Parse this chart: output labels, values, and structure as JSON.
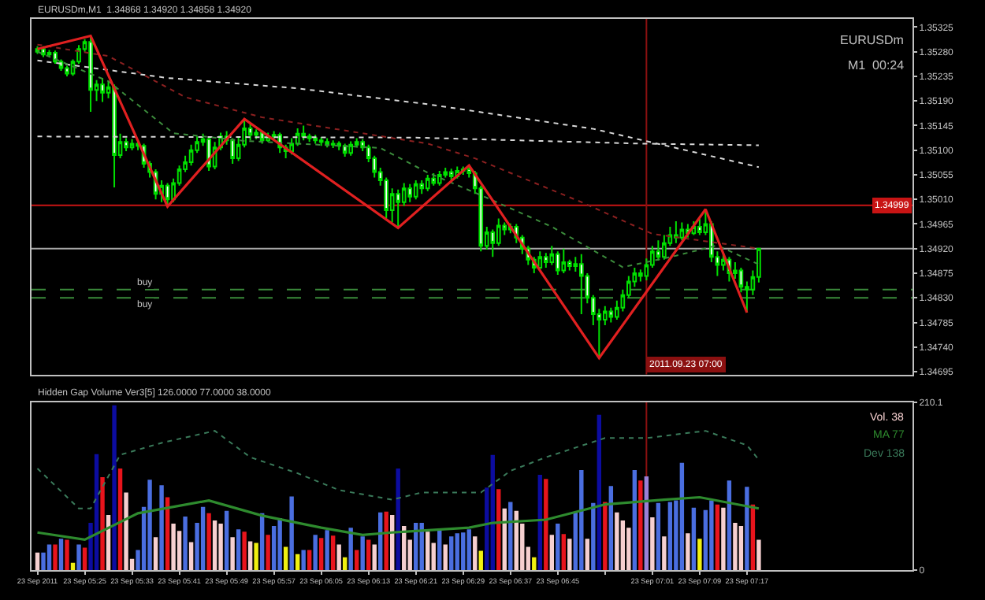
{
  "chart_data": [
    {
      "type": "candlestick",
      "title": "EURUSDm,M1  1.34868 1.34920 1.34858 1.34920",
      "annotations": [
        "EURUSDm",
        "M1  00:24"
      ],
      "tick_labels": "y",
      "xlim": [
        "2011-09-23T05:16",
        "2011-09-23T07:45"
      ],
      "ylim": [
        1.3469,
        1.3534
      ],
      "yticks": [
        1.35325,
        {
          "value": 1.3528,
          "label": "1.35280"
        },
        1.35235,
        {
          "value": 1.3519,
          "label": "1.35190"
        },
        1.35145,
        {
          "value": 1.351,
          "label": "1.35100"
        },
        1.35055,
        {
          "value": 1.3501,
          "label": "1.35010"
        },
        1.34965,
        {
          "value": 1.3492,
          "label": "1.34920"
        },
        1.34875,
        {
          "value": 1.3483,
          "label": "1.34830"
        },
        1.34785,
        {
          "value": 1.3474,
          "label": "1.34740"
        },
        1.34695
      ],
      "x": [
        "2011-09-23T05:17",
        "2011-09-23T05:18",
        "2011-09-23T05:19",
        "2011-09-23T05:20",
        "2011-09-23T05:21",
        "2011-09-23T05:22",
        "2011-09-23T05:23",
        "2011-09-23T05:24",
        "2011-09-23T05:25",
        "2011-09-23T05:26",
        "2011-09-23T05:27",
        "2011-09-23T05:28",
        "2011-09-23T05:29",
        "2011-09-23T05:30",
        "2011-09-23T05:31",
        "2011-09-23T05:32",
        "2011-09-23T05:33",
        "2011-09-23T05:34",
        "2011-09-23T05:35",
        "2011-09-23T05:36",
        "2011-09-23T05:37",
        "2011-09-23T05:38",
        "2011-09-23T05:39",
        "2011-09-23T05:40",
        "2011-09-23T05:41",
        "2011-09-23T05:42",
        "2011-09-23T05:43",
        "2011-09-23T05:44",
        "2011-09-23T05:45",
        "2011-09-23T05:46",
        "2011-09-23T05:47",
        "2011-09-23T05:48",
        "2011-09-23T05:49",
        "2011-09-23T05:50",
        "2011-09-23T05:51",
        "2011-09-23T05:52",
        "2011-09-23T05:53",
        "2011-09-23T05:54",
        "2011-09-23T05:55",
        "2011-09-23T05:56",
        "2011-09-23T05:57",
        "2011-09-23T05:58",
        "2011-09-23T05:59",
        "2011-09-23T06:00",
        "2011-09-23T06:01",
        "2011-09-23T06:02",
        "2011-09-23T06:03",
        "2011-09-23T06:04",
        "2011-09-23T06:05",
        "2011-09-23T06:06",
        "2011-09-23T06:07",
        "2011-09-23T06:08",
        "2011-09-23T06:09",
        "2011-09-23T06:10",
        "2011-09-23T06:11",
        "2011-09-23T06:12",
        "2011-09-23T06:13",
        "2011-09-23T06:14",
        "2011-09-23T06:15",
        "2011-09-23T06:16",
        "2011-09-23T06:17",
        "2011-09-23T06:18",
        "2011-09-23T06:19",
        "2011-09-23T06:20",
        "2011-09-23T06:21",
        "2011-09-23T06:22",
        "2011-09-23T06:23",
        "2011-09-23T06:24",
        "2011-09-23T06:25",
        "2011-09-23T06:26",
        "2011-09-23T06:27",
        "2011-09-23T06:28",
        "2011-09-23T06:29",
        "2011-09-23T06:30",
        "2011-09-23T06:31",
        "2011-09-23T06:32",
        "2011-09-23T06:33",
        "2011-09-23T06:34",
        "2011-09-23T06:35",
        "2011-09-23T06:36",
        "2011-09-23T06:37",
        "2011-09-23T06:38",
        "2011-09-23T06:39",
        "2011-09-23T06:40",
        "2011-09-23T06:41",
        "2011-09-23T06:42",
        "2011-09-23T06:43",
        "2011-09-23T06:44",
        "2011-09-23T06:45",
        "2011-09-23T06:46",
        "2011-09-23T06:47",
        "2011-09-23T06:48",
        "2011-09-23T06:49",
        "2011-09-23T06:50",
        "2011-09-23T06:51",
        "2011-09-23T06:52",
        "2011-09-23T06:53",
        "2011-09-23T06:54",
        "2011-09-23T06:55",
        "2011-09-23T06:56",
        "2011-09-23T06:57",
        "2011-09-23T06:58",
        "2011-09-23T06:59",
        "2011-09-23T07:00",
        "2011-09-23T07:01",
        "2011-09-23T07:02",
        "2011-09-23T07:03",
        "2011-09-23T07:04",
        "2011-09-23T07:05",
        "2011-09-23T07:06",
        "2011-09-23T07:07",
        "2011-09-23T07:08",
        "2011-09-23T07:09",
        "2011-09-23T07:10",
        "2011-09-23T07:11",
        "2011-09-23T07:12",
        "2011-09-23T07:13",
        "2011-09-23T07:14",
        "2011-09-23T07:15",
        "2011-09-23T07:16",
        "2011-09-23T07:17",
        "2011-09-23T07:18",
        "2011-09-23T07:19"
      ],
      "ohlc": [
        [
          1.3528,
          1.3529,
          1.35276,
          1.35285
        ],
        [
          1.35285,
          1.3529,
          1.3527,
          1.35275
        ],
        [
          1.35275,
          1.35283,
          1.35271,
          1.35278
        ],
        [
          1.35278,
          1.35282,
          1.35258,
          1.35262
        ],
        [
          1.35262,
          1.35266,
          1.35245,
          1.3525
        ],
        [
          1.3525,
          1.35254,
          1.35235,
          1.3524
        ],
        [
          1.3524,
          1.35266,
          1.35236,
          1.35262
        ],
        [
          1.35262,
          1.35292,
          1.35258,
          1.35285
        ],
        [
          1.35285,
          1.35303,
          1.3528,
          1.35298
        ],
        [
          1.35298,
          1.35309,
          1.3517,
          1.3521
        ],
        [
          1.3521,
          1.35228,
          1.3519,
          1.3522
        ],
        [
          1.3522,
          1.35232,
          1.35188,
          1.35205
        ],
        [
          1.35205,
          1.35225,
          1.35195,
          1.35215
        ],
        [
          1.35215,
          1.3522,
          1.35032,
          1.35091
        ],
        [
          1.35091,
          1.3513,
          1.35085,
          1.35115
        ],
        [
          1.35115,
          1.35122,
          1.35098,
          1.35105
        ],
        [
          1.35105,
          1.3512,
          1.351,
          1.35112
        ],
        [
          1.35112,
          1.35118,
          1.351,
          1.35108
        ],
        [
          1.35108,
          1.35112,
          1.35068,
          1.35075
        ],
        [
          1.35075,
          1.3508,
          1.3505,
          1.3506
        ],
        [
          1.3506,
          1.35065,
          1.3501,
          1.3502
        ],
        [
          1.3502,
          1.35045,
          1.35005,
          1.35035
        ],
        [
          1.35035,
          1.3504,
          1.34997,
          1.3501
        ],
        [
          1.3501,
          1.35048,
          1.35005,
          1.3504
        ],
        [
          1.3504,
          1.35072,
          1.35035,
          1.35065
        ],
        [
          1.35065,
          1.3509,
          1.3506,
          1.35078
        ],
        [
          1.35078,
          1.3511,
          1.35072,
          1.351
        ],
        [
          1.351,
          1.35125,
          1.35095,
          1.35115
        ],
        [
          1.35115,
          1.3513,
          1.35108,
          1.3512
        ],
        [
          1.3512,
          1.35125,
          1.35062,
          1.3507
        ],
        [
          1.3507,
          1.35115,
          1.35065,
          1.35105
        ],
        [
          1.35105,
          1.35132,
          1.351,
          1.35125
        ],
        [
          1.35125,
          1.35135,
          1.3511,
          1.35118
        ],
        [
          1.35118,
          1.35122,
          1.35075,
          1.35085
        ],
        [
          1.35085,
          1.35125,
          1.3508,
          1.3511
        ],
        [
          1.3511,
          1.35157,
          1.35105,
          1.3514
        ],
        [
          1.3514,
          1.35148,
          1.35118,
          1.35128
        ],
        [
          1.35128,
          1.35138,
          1.3512,
          1.35132
        ],
        [
          1.35132,
          1.35136,
          1.35112,
          1.35118
        ],
        [
          1.35118,
          1.35132,
          1.35115,
          1.35125
        ],
        [
          1.35125,
          1.35135,
          1.3512,
          1.35128
        ],
        [
          1.35128,
          1.35132,
          1.35095,
          1.35105
        ],
        [
          1.35105,
          1.3511,
          1.35085,
          1.35098
        ],
        [
          1.35098,
          1.35122,
          1.35092,
          1.35112
        ],
        [
          1.35112,
          1.3514,
          1.35108,
          1.3513
        ],
        [
          1.3513,
          1.35145,
          1.35118,
          1.35125
        ],
        [
          1.35125,
          1.3513,
          1.35115,
          1.35122
        ],
        [
          1.35122,
          1.35128,
          1.35112,
          1.35118
        ],
        [
          1.35118,
          1.35124,
          1.35108,
          1.35115
        ],
        [
          1.35115,
          1.35122,
          1.35105,
          1.3511
        ],
        [
          1.3511,
          1.35118,
          1.35104,
          1.35112
        ],
        [
          1.35112,
          1.35116,
          1.351,
          1.35108
        ],
        [
          1.35108,
          1.35112,
          1.35088,
          1.35095
        ],
        [
          1.35095,
          1.35116,
          1.3509,
          1.3511
        ],
        [
          1.3511,
          1.35122,
          1.35105,
          1.35115
        ],
        [
          1.35115,
          1.3512,
          1.35098,
          1.35105
        ],
        [
          1.35105,
          1.3511,
          1.35078,
          1.35085
        ],
        [
          1.35085,
          1.3509,
          1.3505,
          1.3506
        ],
        [
          1.3506,
          1.35068,
          1.35035,
          1.35045
        ],
        [
          1.35045,
          1.3505,
          1.34975,
          1.3499
        ],
        [
          1.3499,
          1.3503,
          1.34968,
          1.3502
        ],
        [
          1.3502,
          1.35028,
          1.34958,
          1.35005
        ],
        [
          1.35005,
          1.3504,
          1.34998,
          1.3503
        ],
        [
          1.3503,
          1.35038,
          1.35005,
          1.35015
        ],
        [
          1.35015,
          1.35045,
          1.3501,
          1.35038
        ],
        [
          1.35038,
          1.35045,
          1.3502,
          1.3503
        ],
        [
          1.3503,
          1.35055,
          1.35025,
          1.35048
        ],
        [
          1.35048,
          1.35058,
          1.35035,
          1.3504
        ],
        [
          1.3504,
          1.35062,
          1.35035,
          1.35055
        ],
        [
          1.35055,
          1.35068,
          1.3505,
          1.3506
        ],
        [
          1.3506,
          1.35066,
          1.35045,
          1.35052
        ],
        [
          1.35052,
          1.3507,
          1.35048,
          1.35062
        ],
        [
          1.35062,
          1.3507,
          1.35055,
          1.35065
        ],
        [
          1.35065,
          1.35072,
          1.3505,
          1.35058
        ],
        [
          1.35058,
          1.35062,
          1.3502,
          1.3503
        ],
        [
          1.3503,
          1.35035,
          1.34915,
          1.34925
        ],
        [
          1.34925,
          1.3496,
          1.34918,
          1.3495
        ],
        [
          1.3495,
          1.34955,
          1.34905,
          1.3493
        ],
        [
          1.3493,
          1.34975,
          1.34925,
          1.34962
        ],
        [
          1.34962,
          1.34968,
          1.34945,
          1.34955
        ],
        [
          1.34955,
          1.34966,
          1.34948,
          1.3496
        ],
        [
          1.3496,
          1.34965,
          1.3493,
          1.3494
        ],
        [
          1.3494,
          1.34945,
          1.3491,
          1.3492
        ],
        [
          1.3492,
          1.34925,
          1.3489,
          1.349
        ],
        [
          1.349,
          1.34905,
          1.34875,
          1.34885
        ],
        [
          1.34885,
          1.34915,
          1.3488,
          1.34905
        ],
        [
          1.34905,
          1.34912,
          1.34885,
          1.34895
        ],
        [
          1.34895,
          1.34925,
          1.3489,
          1.3491
        ],
        [
          1.3491,
          1.34915,
          1.34872,
          1.3488
        ],
        [
          1.3488,
          1.3492,
          1.34875,
          1.34895
        ],
        [
          1.34895,
          1.349,
          1.3488,
          1.34888
        ],
        [
          1.34888,
          1.34905,
          1.34878,
          1.34892
        ],
        [
          1.34892,
          1.3491,
          1.348,
          1.3487
        ],
        [
          1.3487,
          1.34875,
          1.3482,
          1.3483
        ],
        [
          1.3483,
          1.34835,
          1.3478,
          1.348
        ],
        [
          1.348,
          1.3481,
          1.3472,
          1.3479
        ],
        [
          1.3479,
          1.34815,
          1.3478,
          1.34805
        ],
        [
          1.34805,
          1.34812,
          1.34785,
          1.34795
        ],
        [
          1.34795,
          1.34825,
          1.3479,
          1.34812
        ],
        [
          1.34812,
          1.34845,
          1.34805,
          1.34835
        ],
        [
          1.34835,
          1.3487,
          1.3483,
          1.3486
        ],
        [
          1.3486,
          1.34885,
          1.3485,
          1.34875
        ],
        [
          1.34875,
          1.34882,
          1.3486,
          1.3487
        ],
        [
          1.3487,
          1.34902,
          1.34862,
          1.3489
        ],
        [
          1.3489,
          1.34925,
          1.34885,
          1.34915
        ],
        [
          1.34915,
          1.34935,
          1.34898,
          1.34905
        ],
        [
          1.34905,
          1.34945,
          1.349,
          1.3493
        ],
        [
          1.3493,
          1.3496,
          1.34925,
          1.34945
        ],
        [
          1.34945,
          1.3497,
          1.3493,
          1.3494
        ],
        [
          1.3494,
          1.34968,
          1.34935,
          1.34955
        ],
        [
          1.34955,
          1.34965,
          1.3494,
          1.34948
        ],
        [
          1.34948,
          1.3497,
          1.34945,
          1.3496
        ],
        [
          1.3496,
          1.34975,
          1.34945,
          1.3495
        ],
        [
          1.3495,
          1.34992,
          1.34945,
          1.34965
        ],
        [
          1.34965,
          1.3497,
          1.34895,
          1.34905
        ],
        [
          1.34905,
          1.34915,
          1.3487,
          1.3489
        ],
        [
          1.3489,
          1.3491,
          1.3488,
          1.349
        ],
        [
          1.349,
          1.34905,
          1.3486,
          1.34875
        ],
        [
          1.34875,
          1.34895,
          1.34865,
          1.3488
        ],
        [
          1.3488,
          1.34885,
          1.3484,
          1.3485
        ],
        [
          1.3485,
          1.3486,
          1.34803,
          1.34845
        ],
        [
          1.34845,
          1.3488,
          1.34835,
          1.34868
        ],
        [
          1.34868,
          1.3492,
          1.34858,
          1.3492
        ]
      ],
      "series": [
        {
          "type": "line",
          "color": "#d8d8d8",
          "line_style": "dotted",
          "x": [
            "2011-09-23T05:17",
            "2011-09-23T05:39",
            "2011-09-23T06:01",
            "2011-09-23T06:23",
            "2011-09-23T06:51",
            "2011-09-23T07:19"
          ],
          "values": [
            1.35264,
            1.35232,
            1.35213,
            1.35184,
            1.35139,
            1.35069
          ]
        },
        {
          "type": "line",
          "color": "#d8d8d8",
          "line_style": "dotted",
          "x": [
            "2011-09-23T05:17",
            "2011-09-23T06:21",
            "2011-09-23T06:59",
            "2011-09-23T07:19"
          ],
          "values": [
            1.35125,
            1.35123,
            1.35112,
            1.35109
          ]
        },
        {
          "type": "line",
          "color": "#8b2020",
          "line_style": "dotted",
          "x": [
            "2011-09-23T05:17",
            "2011-09-23T05:29",
            "2011-09-23T05:42",
            "2011-09-23T05:55",
            "2011-09-23T06:23",
            "2011-09-23T06:31",
            "2011-09-23T06:49",
            "2011-09-23T07:01",
            "2011-09-23T07:19"
          ],
          "values": [
            1.35293,
            1.35272,
            1.35197,
            1.3516,
            1.35112,
            1.35085,
            1.35005,
            1.34947,
            1.3492
          ]
        },
        {
          "type": "line",
          "color": "#3c8c3c",
          "line_style": "dotted",
          "x": [
            "2011-09-23T05:17",
            "2011-09-23T05:29",
            "2011-09-23T05:40",
            "2011-09-23T05:52",
            "2011-09-23T06:15",
            "2011-09-23T06:23",
            "2011-09-23T06:33",
            "2011-09-23T06:44",
            "2011-09-23T06:56",
            "2011-09-23T07:05",
            "2011-09-23T07:12",
            "2011-09-23T07:19"
          ],
          "values": [
            1.3528,
            1.35226,
            1.35131,
            1.35117,
            1.35104,
            1.35059,
            1.35013,
            1.3496,
            1.34886,
            1.34907,
            1.34926,
            1.34891
          ]
        },
        {
          "type": "line",
          "color": "#e02020",
          "line_style": "solid",
          "x": [
            "2011-09-23T05:17",
            "2011-09-23T05:26",
            "2011-09-23T05:39",
            "2011-09-23T05:52",
            "2011-09-23T06:18",
            "2011-09-23T06:30",
            "2011-09-23T06:52",
            "2011-09-23T07:10",
            "2011-09-23T07:17"
          ],
          "values": [
            1.35285,
            1.35309,
            1.34997,
            1.35157,
            1.34958,
            1.35072,
            1.3472,
            1.34992,
            1.34803
          ]
        }
      ],
      "ref_lines": [
        {
          "axis": "y",
          "value": 1.34999,
          "label": "1.34999",
          "color": "#c81414",
          "line_style": "solid"
        },
        {
          "axis": "y",
          "value": 1.3492,
          "color": "#a8a8a8",
          "line_style": "solid"
        },
        {
          "axis": "y",
          "value": 1.34845,
          "label": "buy",
          "color": "#3a8a3a",
          "line_style": "dashed"
        },
        {
          "axis": "y",
          "value": 1.3483,
          "label": "buy",
          "color": "#3a8a3a",
          "line_style": "dashed"
        },
        {
          "axis": "x",
          "value": "2011-09-23T07:00",
          "label": "2011.09.23 07:00",
          "color": "#8b1010",
          "line_style": "solid"
        }
      ]
    },
    {
      "type": "bar",
      "title": "Hidden Gap Volume Ver3[5] 126.0000 77.0000 38.0000",
      "legend": "top right",
      "xlim": [
        "2011-09-23T05:16",
        "2011-09-23T07:45"
      ],
      "xticks": [
        {
          "value": "2011-09-23T05:17",
          "label": "23 Sep 2011"
        },
        {
          "value": "2011-09-23T05:25",
          "label": "23 Sep 05:25"
        },
        {
          "value": "2011-09-23T05:33",
          "label": "23 Sep 05:33"
        },
        {
          "value": "2011-09-23T05:41",
          "label": "23 Sep 05:41"
        },
        {
          "value": "2011-09-23T05:49",
          "label": "23 Sep 05:49"
        },
        {
          "value": "2011-09-23T05:57",
          "label": "23 Sep 05:57"
        },
        {
          "value": "2011-09-23T06:05",
          "label": "23 Sep 06:05"
        },
        {
          "value": "2011-09-23T06:13",
          "label": "23 Sep 06:13"
        },
        {
          "value": "2011-09-23T06:21",
          "label": "23 Sep 06:21"
        },
        {
          "value": "2011-09-23T06:29",
          "label": "23 Sep 06:29"
        },
        {
          "value": "2011-09-23T06:37",
          "label": "23 Sep 06:37"
        },
        {
          "value": "2011-09-23T06:45",
          "label": "23 Sep 06:45"
        },
        {
          "value": "2011-09-23T06:53",
          "label": null
        },
        {
          "value": "2011-09-23T07:01",
          "label": "23 Sep 07:01"
        },
        {
          "value": "2011-09-23T07:09",
          "label": "23 Sep 07:09"
        },
        {
          "value": "2011-09-23T07:17",
          "label": "23 Sep 07:17"
        }
      ],
      "ylim": [
        0,
        210.1
      ],
      "yticks": [
        0,
        210.1
      ],
      "x": [
        "2011-09-23T05:17",
        "2011-09-23T05:18",
        "2011-09-23T05:19",
        "2011-09-23T05:20",
        "2011-09-23T05:21",
        "2011-09-23T05:22",
        "2011-09-23T05:23",
        "2011-09-23T05:24",
        "2011-09-23T05:25",
        "2011-09-23T05:26",
        "2011-09-23T05:27",
        "2011-09-23T05:28",
        "2011-09-23T05:29",
        "2011-09-23T05:30",
        "2011-09-23T05:31",
        "2011-09-23T05:32",
        "2011-09-23T05:33",
        "2011-09-23T05:34",
        "2011-09-23T05:35",
        "2011-09-23T05:36",
        "2011-09-23T05:37",
        "2011-09-23T05:38",
        "2011-09-23T05:39",
        "2011-09-23T05:40",
        "2011-09-23T05:41",
        "2011-09-23T05:42",
        "2011-09-23T05:43",
        "2011-09-23T05:44",
        "2011-09-23T05:45",
        "2011-09-23T05:46",
        "2011-09-23T05:47",
        "2011-09-23T05:48",
        "2011-09-23T05:49",
        "2011-09-23T05:50",
        "2011-09-23T05:51",
        "2011-09-23T05:52",
        "2011-09-23T05:53",
        "2011-09-23T05:54",
        "2011-09-23T05:55",
        "2011-09-23T05:56",
        "2011-09-23T05:57",
        "2011-09-23T05:58",
        "2011-09-23T05:59",
        "2011-09-23T06:00",
        "2011-09-23T06:01",
        "2011-09-23T06:02",
        "2011-09-23T06:03",
        "2011-09-23T06:04",
        "2011-09-23T06:05",
        "2011-09-23T06:06",
        "2011-09-23T06:07",
        "2011-09-23T06:08",
        "2011-09-23T06:09",
        "2011-09-23T06:10",
        "2011-09-23T06:11",
        "2011-09-23T06:12",
        "2011-09-23T06:13",
        "2011-09-23T06:14",
        "2011-09-23T06:15",
        "2011-09-23T06:16",
        "2011-09-23T06:17",
        "2011-09-23T06:18",
        "2011-09-23T06:19",
        "2011-09-23T06:20",
        "2011-09-23T06:21",
        "2011-09-23T06:22",
        "2011-09-23T06:23",
        "2011-09-23T06:24",
        "2011-09-23T06:25",
        "2011-09-23T06:26",
        "2011-09-23T06:27",
        "2011-09-23T06:28",
        "2011-09-23T06:29",
        "2011-09-23T06:30",
        "2011-09-23T06:31",
        "2011-09-23T06:32",
        "2011-09-23T06:33",
        "2011-09-23T06:34",
        "2011-09-23T06:35",
        "2011-09-23T06:36",
        "2011-09-23T06:37",
        "2011-09-23T06:38",
        "2011-09-23T06:39",
        "2011-09-23T06:40",
        "2011-09-23T06:41",
        "2011-09-23T06:42",
        "2011-09-23T06:43",
        "2011-09-23T06:44",
        "2011-09-23T06:45",
        "2011-09-23T06:46",
        "2011-09-23T06:47",
        "2011-09-23T06:48",
        "2011-09-23T06:49",
        "2011-09-23T06:50",
        "2011-09-23T06:51",
        "2011-09-23T06:52",
        "2011-09-23T06:53",
        "2011-09-23T06:54",
        "2011-09-23T06:55",
        "2011-09-23T06:56",
        "2011-09-23T06:57",
        "2011-09-23T06:58",
        "2011-09-23T06:59",
        "2011-09-23T07:00",
        "2011-09-23T07:01",
        "2011-09-23T07:02",
        "2011-09-23T07:03",
        "2011-09-23T07:04",
        "2011-09-23T07:05",
        "2011-09-23T07:06",
        "2011-09-23T07:07",
        "2011-09-23T07:08",
        "2011-09-23T07:09",
        "2011-09-23T07:10",
        "2011-09-23T07:11",
        "2011-09-23T07:12",
        "2011-09-23T07:13",
        "2011-09-23T07:14",
        "2011-09-23T07:15",
        "2011-09-23T07:16",
        "2011-09-23T07:17",
        "2011-09-23T07:18",
        "2011-09-23T07:19"
      ],
      "series": [
        {
          "name": "Vol. 38",
          "type": "bar",
          "values": [
            22,
            22,
            32,
            32,
            39,
            38,
            9,
            32,
            28,
            59,
            145,
            116,
            69,
            206,
            127,
            97,
            14,
            25,
            79,
            113,
            41,
            106,
            91,
            58,
            49,
            67,
            35,
            59,
            79,
            71,
            62,
            58,
            74,
            41,
            51,
            48,
            36,
            34,
            71,
            44,
            55,
            65,
            29,
            92,
            20,
            25,
            25,
            44,
            40,
            50,
            43,
            32,
            16,
            53,
            25,
            42,
            38,
            32,
            72,
            73,
            69,
            127,
            55,
            38,
            59,
            59,
            48,
            34,
            51,
            32,
            42,
            46,
            47,
            51,
            42,
            24,
            103,
            144,
            101,
            77,
            85,
            74,
            58,
            29,
            16,
            119,
            114,
            44,
            58,
            45,
            39,
            72,
            125,
            39,
            84,
            194,
            85,
            105,
            72,
            62,
            53,
            125,
            112,
            117,
            66,
            84,
            42,
            85,
            87,
            134,
            46,
            78,
            39,
            75,
            87,
            82,
            78,
            112,
            59,
            55,
            104,
            82,
            38
          ],
          "colors": [
            "#f6d0d0",
            "#4a6ee0",
            "#4a6ee0",
            "#e8141c",
            "#4a6ee0",
            "#e8141c",
            "#f0f010",
            "#4a6ee0",
            "#e8141c",
            "#0c0ca0",
            "#0c0ca0",
            "#e8141c",
            "#f6d0d0",
            "#0c0ca0",
            "#e8141c",
            "#f6d0d0",
            "#f6d0d0",
            "#4a6ee0",
            "#4a6ee0",
            "#4a6ee0",
            "#f6d0d0",
            "#4a6ee0",
            "#e8141c",
            "#f6d0d0",
            "#f6d0d0",
            "#4a6ee0",
            "#f6d0d0",
            "#4a6ee0",
            "#4a6ee0",
            "#e8141c",
            "#f6d0d0",
            "#f6d0d0",
            "#4a6ee0",
            "#f6d0d0",
            "#4a6ee0",
            "#e8141c",
            "#f6d0d0",
            "#f0f010",
            "#4a6ee0",
            "#e8141c",
            "#4a6ee0",
            "#4a6ee0",
            "#f0f010",
            "#4a6ee0",
            "#f0f010",
            "#4a6ee0",
            "#e8141c",
            "#4a6ee0",
            "#e8141c",
            "#4a6ee0",
            "#e8141c",
            "#f6d0d0",
            "#f0f010",
            "#4a6ee0",
            "#e8141c",
            "#4a6ee0",
            "#e8141c",
            "#f6d0d0",
            "#4a6ee0",
            "#e8141c",
            "#f6d0d0",
            "#0c0ca0",
            "#f6d0d0",
            "#f6d0d0",
            "#4a6ee0",
            "#4a6ee0",
            "#f6d0d0",
            "#f6d0d0",
            "#4a6ee0",
            "#f6d0d0",
            "#4a6ee0",
            "#4a6ee0",
            "#4a6ee0",
            "#4a6ee0",
            "#f6d0d0",
            "#f0f010",
            "#0c0ca0",
            "#0c0ca0",
            "#e8141c",
            "#f6d0d0",
            "#4a6ee0",
            "#f6d0d0",
            "#f6d0d0",
            "#f6d0d0",
            "#f0f010",
            "#0c0ca0",
            "#e8141c",
            "#f6d0d0",
            "#4a6ee0",
            "#e8141c",
            "#f6d0d0",
            "#4a6ee0",
            "#4a6ee0",
            "#f6d0d0",
            "#4a6ee0",
            "#0c0ca0",
            "#e8141c",
            "#4a6ee0",
            "#f6d0d0",
            "#f6d0d0",
            "#f6d0d0",
            "#4a6ee0",
            "#e8141c",
            "#9a80d6",
            "#f6d0d0",
            "#4a6ee0",
            "#f6d0d0",
            "#4a6ee0",
            "#4a6ee0",
            "#4a6ee0",
            "#f6d0d0",
            "#4a6ee0",
            "#f0f010",
            "#4a6ee0",
            "#4a6ee0",
            "#e8141c",
            "#f6d0d0",
            "#4a6ee0",
            "#f6d0d0",
            "#f6d0d0",
            "#4a6ee0",
            "#e8141c",
            "#f6d0d0"
          ]
        },
        {
          "name": "MA 77",
          "type": "line",
          "color": "#2e8b2e",
          "line_style": "solid",
          "x": [
            "2011-09-23T05:17",
            "2011-09-23T05:25",
            "2011-09-23T05:34",
            "2011-09-23T05:46",
            "2011-09-23T05:55",
            "2011-09-23T06:05",
            "2011-09-23T06:12",
            "2011-09-23T06:17",
            "2011-09-23T06:30",
            "2011-09-23T06:34",
            "2011-09-23T06:43",
            "2011-09-23T06:53",
            "2011-09-23T07:03",
            "2011-09-23T07:09",
            "2011-09-23T07:19"
          ],
          "values": [
            47,
            38,
            71,
            87,
            68,
            53,
            44,
            47,
            53,
            59,
            63,
            82,
            88,
            91,
            77
          ]
        },
        {
          "name": "Dev 138",
          "type": "line",
          "color": "#3a7a5a",
          "line_style": "dotted",
          "x": [
            "2011-09-23T05:17",
            "2011-09-23T05:24",
            "2011-09-23T05:26",
            "2011-09-23T05:31",
            "2011-09-23T05:38",
            "2011-09-23T05:47",
            "2011-09-23T05:53",
            "2011-09-23T06:01",
            "2011-09-23T06:08",
            "2011-09-23T06:17",
            "2011-09-23T06:22",
            "2011-09-23T06:32",
            "2011-09-23T06:37",
            "2011-09-23T06:43",
            "2011-09-23T06:53",
            "2011-09-23T07:00",
            "2011-09-23T07:10",
            "2011-09-23T07:17",
            "2011-09-23T07:19"
          ],
          "values": [
            127,
            77,
            77,
            144,
            159,
            174,
            141,
            121,
            100,
            88,
            97,
            97,
            124,
            141,
            165,
            165,
            174,
            156,
            138
          ]
        }
      ],
      "ref_lines": [
        {
          "axis": "x",
          "value": "2011-09-23T07:00",
          "color": "#8b1010",
          "line_style": "solid"
        }
      ]
    }
  ]
}
